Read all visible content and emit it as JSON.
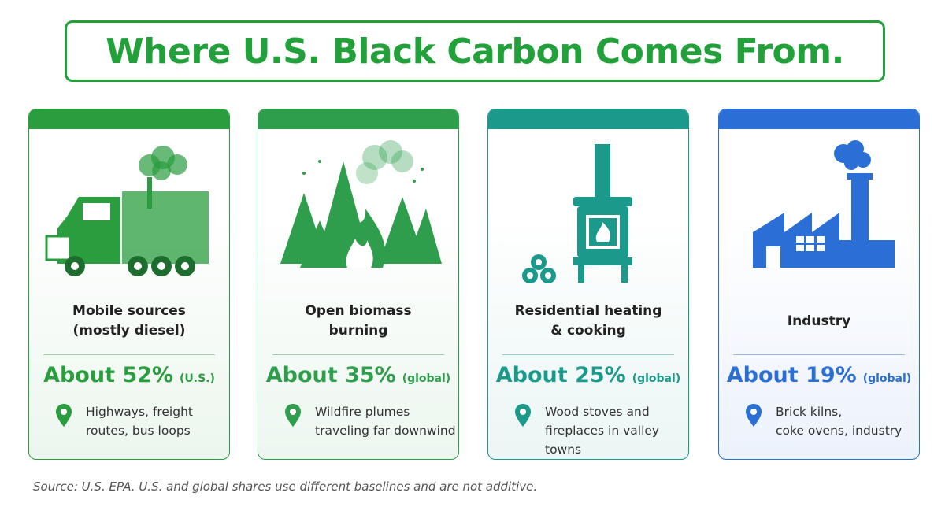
{
  "header": {
    "title": "Where U.S. Black Carbon Comes From.",
    "color": "#22a13a"
  },
  "cards": [
    {
      "title_lines": [
        "Mobile sources",
        "(mostly diesel)"
      ],
      "share": "About 52%",
      "scope": "(U.S.)",
      "note_lines": [
        "Highways, freight",
        "routes, bus loops"
      ],
      "color": "#2a9d3f"
    },
    {
      "title_lines": [
        "Open biomass",
        "burning"
      ],
      "share": "About 35%",
      "scope": "(global)",
      "note_lines": [
        "Wildfire plumes",
        "traveling far downwind"
      ],
      "color": "#2f9e4c"
    },
    {
      "title_lines": [
        "Residential heating",
        "& cooking"
      ],
      "share": "About 25%",
      "scope": "(global)",
      "note_lines": [
        "Wood stoves and",
        "fireplaces in valley towns"
      ],
      "color": "#1b9a8c"
    },
    {
      "title_lines": [
        "Industry"
      ],
      "share": "About 19%",
      "scope": "(global)",
      "note_lines": [
        "Brick kilns,",
        "coke ovens, industry"
      ],
      "color": "#2b6fd6"
    }
  ],
  "footer": {
    "source": "Source: U.S. EPA. U.S. and global shares use different baselines and are not additive."
  }
}
